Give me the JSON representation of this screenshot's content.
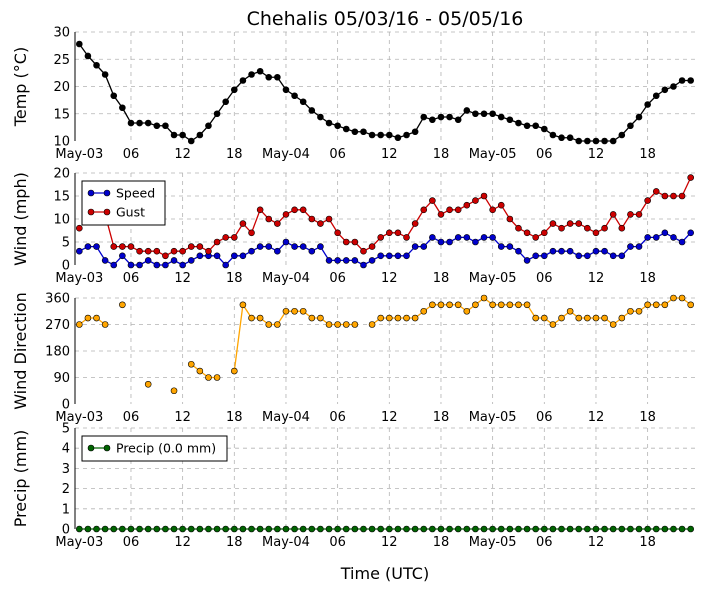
{
  "chart_data": {
    "title": "Chehalis 05/03/16 - 05/05/16",
    "xlabel": "Time (UTC)",
    "x_ticks": [
      "May-03",
      "06",
      "12",
      "18",
      "May-04",
      "06",
      "12",
      "18",
      "May-05",
      "06",
      "12",
      "18"
    ],
    "x_tick_hours": [
      0,
      6,
      12,
      18,
      24,
      30,
      36,
      42,
      48,
      54,
      60,
      66
    ],
    "xlim_hours": [
      -0.5,
      71.5
    ],
    "time_step_hours": 1,
    "panels": [
      {
        "type": "line",
        "ylabel": "Temp (°C)",
        "ylim": [
          10,
          30
        ],
        "yticks": [
          10,
          15,
          20,
          25,
          30
        ],
        "grid": true,
        "series": [
          {
            "color": "#000000",
            "values": [
              27.8,
              25.6,
              23.9,
              22.2,
              18.3,
              16.1,
              13.3,
              13.3,
              13.3,
              12.8,
              12.8,
              11.1,
              11.1,
              10.0,
              11.1,
              12.8,
              15.0,
              17.2,
              19.4,
              21.1,
              22.2,
              22.8,
              21.7,
              21.7,
              19.4,
              18.3,
              17.2,
              15.6,
              14.4,
              13.3,
              12.8,
              12.2,
              11.7,
              11.7,
              11.1,
              11.1,
              11.1,
              10.6,
              11.1,
              11.7,
              14.4,
              13.9,
              14.4,
              14.4,
              13.9,
              15.6,
              15.0,
              15.0,
              15.0,
              14.4,
              13.9,
              13.3,
              12.8,
              12.8,
              12.2,
              11.1,
              10.6,
              10.6,
              10.0,
              10.0,
              10.0,
              10.0,
              10.0,
              11.1,
              12.8,
              14.4,
              16.7,
              18.3,
              19.4,
              20.0,
              21.1,
              21.1
            ]
          }
        ]
      },
      {
        "type": "line",
        "ylabel": "Wind (mph)",
        "ylim": [
          0,
          20
        ],
        "yticks": [
          0,
          5,
          10,
          15,
          20
        ],
        "grid": true,
        "legend": "upper-left",
        "series": [
          {
            "name": "Speed",
            "color": "#0000cc",
            "values": [
              3,
              4,
              4,
              1,
              0,
              2,
              0,
              0,
              1,
              0,
              0,
              1,
              0,
              1,
              2,
              2,
              2,
              0,
              2,
              2,
              3,
              4,
              4,
              3,
              5,
              4,
              4,
              3,
              4,
              1,
              1,
              1,
              1,
              0,
              1,
              2,
              2,
              2,
              2,
              4,
              4,
              6,
              5,
              5,
              6,
              6,
              5,
              6,
              6,
              4,
              4,
              3,
              1,
              2,
              2,
              3,
              3,
              3,
              2,
              2,
              3,
              3,
              2,
              2,
              4,
              4,
              6,
              6,
              7,
              6,
              5,
              7
            ]
          },
          {
            "name": "Gust",
            "color": "#cc0000",
            "values": [
              8,
              null,
              null,
              11,
              4,
              4,
              4,
              3,
              3,
              3,
              2,
              3,
              3,
              4,
              4,
              3,
              5,
              6,
              6,
              9,
              7,
              12,
              10,
              9,
              11,
              12,
              12,
              10,
              9,
              10,
              7,
              5,
              5,
              3,
              4,
              6,
              7,
              7,
              6,
              9,
              12,
              14,
              11,
              12,
              12,
              13,
              14,
              15,
              12,
              13,
              10,
              8,
              7,
              6,
              7,
              9,
              8,
              9,
              9,
              8,
              7,
              8,
              11,
              8,
              11,
              11,
              14,
              16,
              15,
              15,
              15,
              19
            ]
          }
        ]
      },
      {
        "type": "line",
        "ylabel": "Wind Direction",
        "ylim": [
          0,
          360
        ],
        "yticks": [
          0,
          90,
          180,
          270,
          360
        ],
        "grid": true,
        "series": [
          {
            "color": "#ffa500",
            "values": [
              270,
              292,
              292,
              270,
              null,
              337,
              null,
              null,
              67,
              null,
              null,
              45,
              null,
              135,
              112,
              90,
              90,
              null,
              112,
              337,
              292,
              292,
              270,
              270,
              315,
              315,
              315,
              292,
              292,
              270,
              270,
              270,
              270,
              null,
              270,
              292,
              292,
              292,
              292,
              292,
              315,
              337,
              337,
              337,
              337,
              315,
              337,
              360,
              337,
              337,
              337,
              337,
              337,
              292,
              292,
              270,
              292,
              315,
              292,
              292,
              292,
              292,
              270,
              292,
              315,
              315,
              337,
              337,
              337,
              360,
              360,
              337
            ]
          }
        ]
      },
      {
        "type": "line",
        "ylabel": "Precip (mm)",
        "ylim": [
          0,
          5
        ],
        "yticks": [
          0,
          1,
          2,
          3,
          4,
          5
        ],
        "grid": true,
        "legend": "upper-left",
        "series": [
          {
            "name": "Precip (0.0 mm)",
            "color": "#006400",
            "values": [
              0,
              0,
              0,
              0,
              0,
              0,
              0,
              0,
              0,
              0,
              0,
              0,
              0,
              0,
              0,
              0,
              0,
              0,
              0,
              0,
              0,
              0,
              0,
              0,
              0,
              0,
              0,
              0,
              0,
              0,
              0,
              0,
              0,
              0,
              0,
              0,
              0,
              0,
              0,
              0,
              0,
              0,
              0,
              0,
              0,
              0,
              0,
              0,
              0,
              0,
              0,
              0,
              0,
              0,
              0,
              0,
              0,
              0,
              0,
              0,
              0,
              0,
              0,
              0,
              0,
              0,
              0,
              0,
              0,
              0,
              0,
              0
            ]
          }
        ]
      }
    ]
  }
}
